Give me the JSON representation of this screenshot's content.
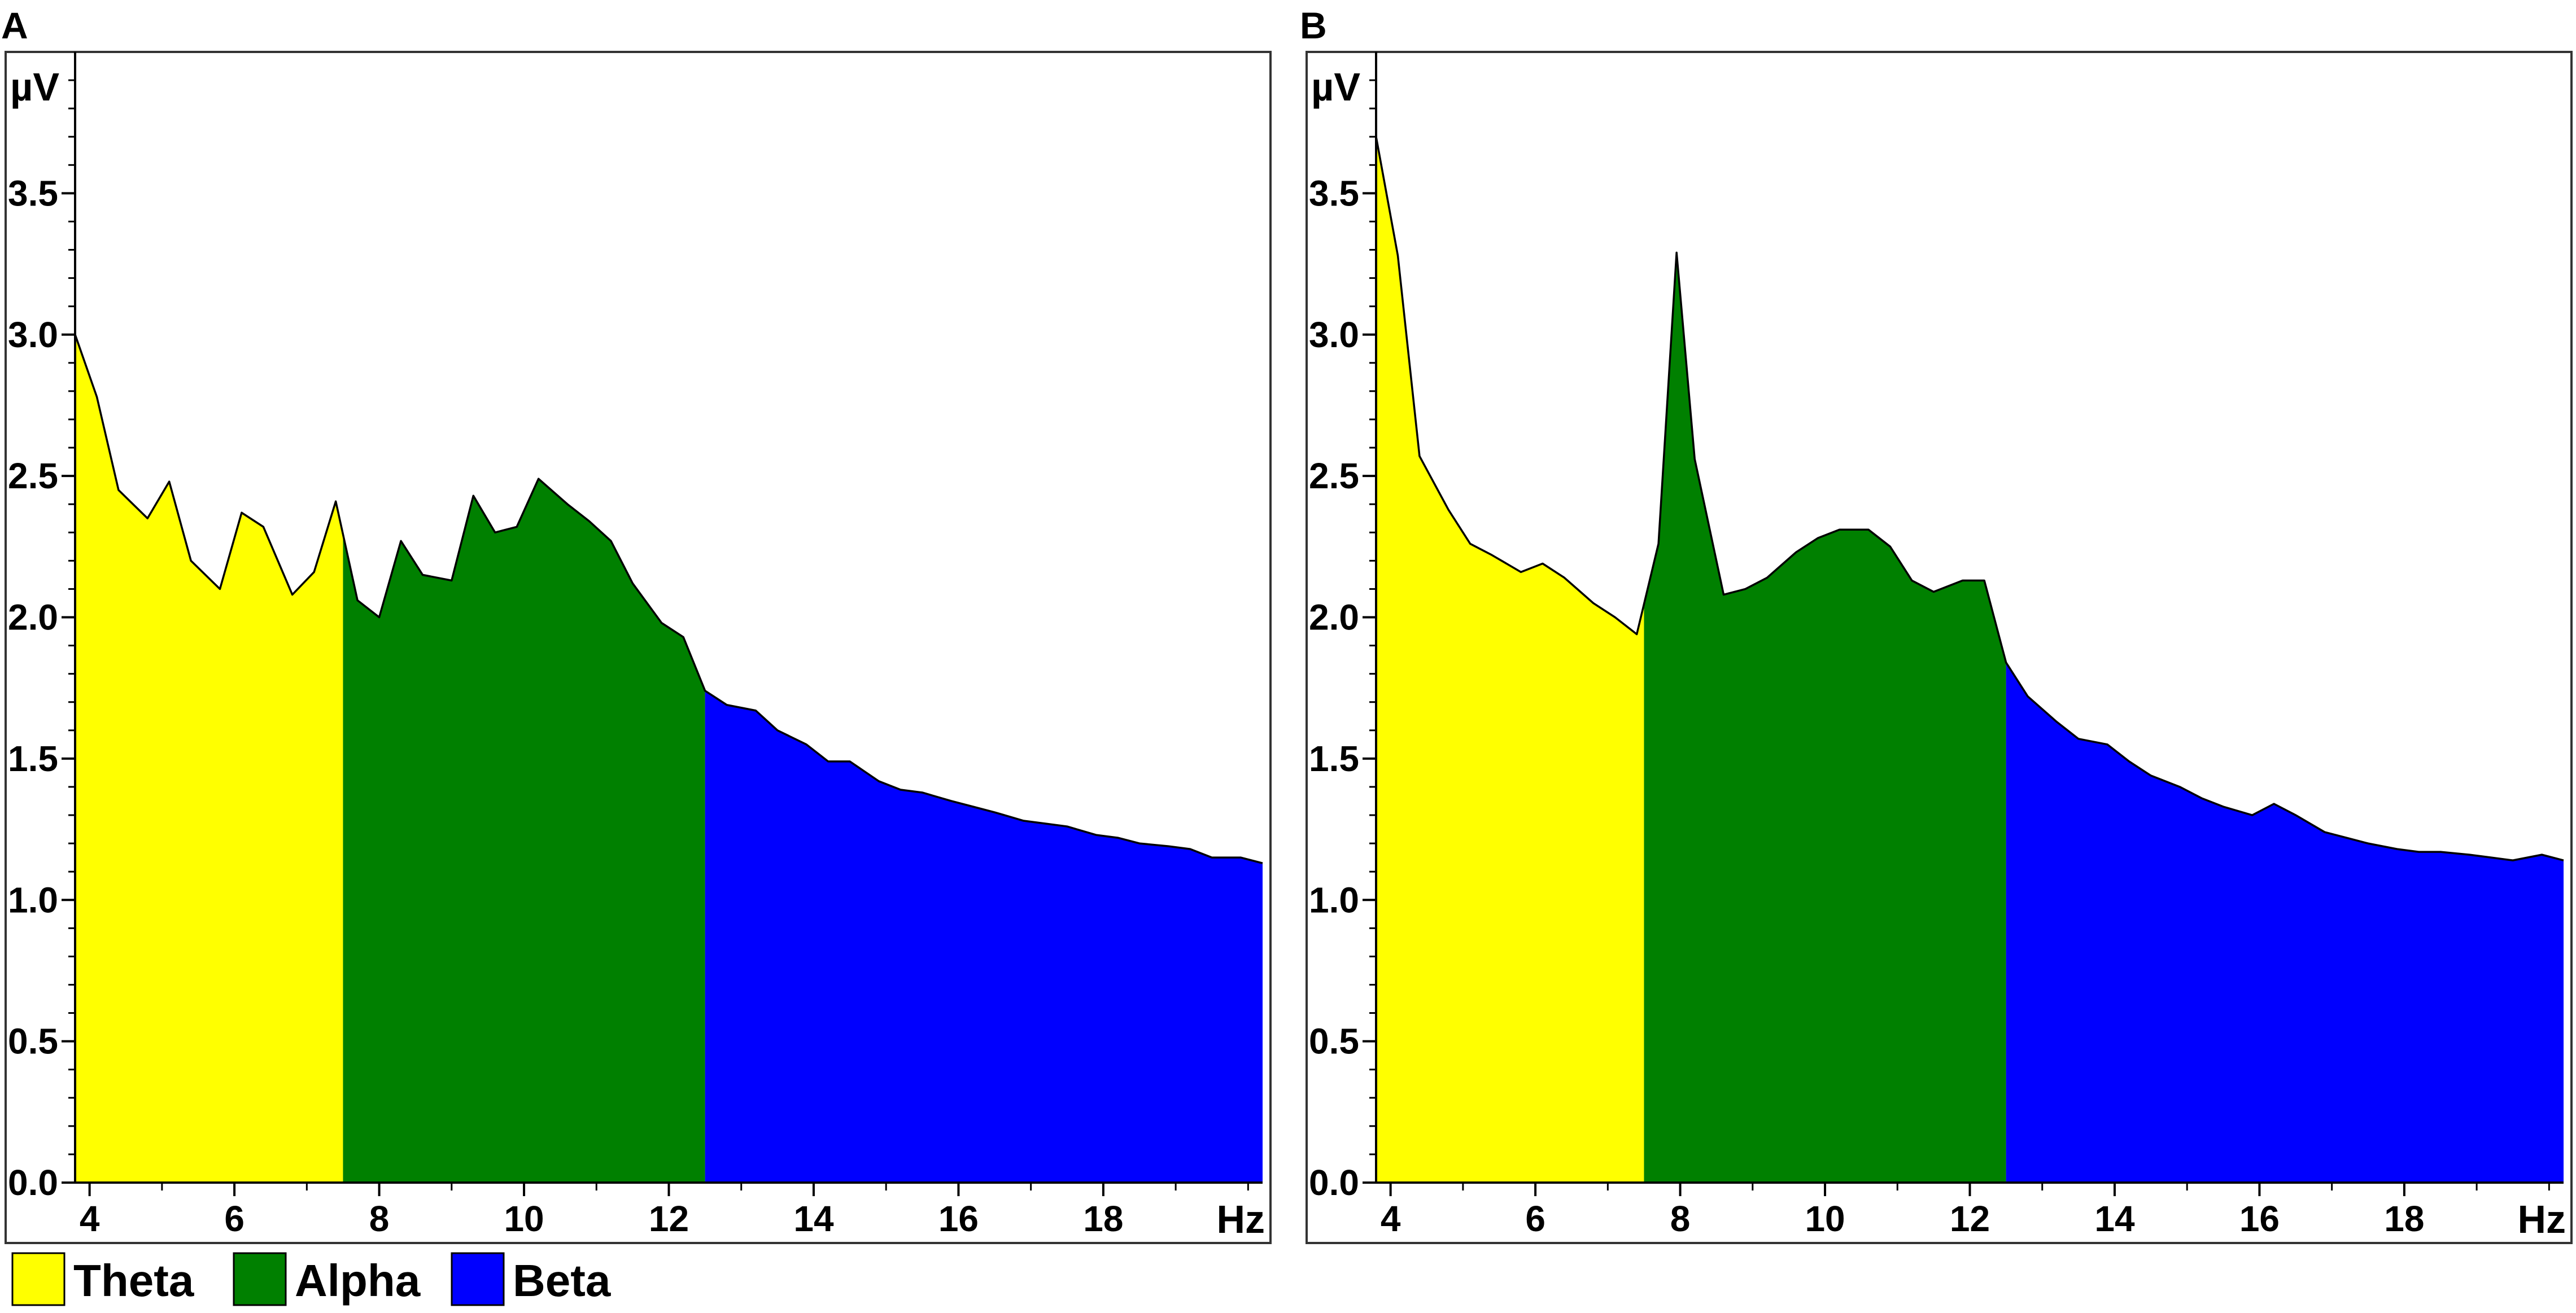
{
  "legend": [
    {
      "name": "Theta",
      "color": "#ffff00"
    },
    {
      "name": "Alpha",
      "color": "#008000"
    },
    {
      "name": "Beta",
      "color": "#0000ff"
    }
  ],
  "chart_data": [
    {
      "type": "area",
      "panel": "A",
      "xlabel": "Hz",
      "ylabel": "µV",
      "xlim": [
        3.8,
        20.2
      ],
      "ylim": [
        0,
        4.0
      ],
      "xticks": [
        4,
        6,
        8,
        10,
        12,
        14,
        16,
        18
      ],
      "yticks": [
        "0.0",
        "0.5",
        "1.0",
        "1.5",
        "2.0",
        "2.5",
        "3.0",
        "3.5"
      ],
      "grid": false,
      "bands": [
        {
          "name": "Theta",
          "from": 3.8,
          "to": 7.5
        },
        {
          "name": "Alpha",
          "from": 7.5,
          "to": 12.5
        },
        {
          "name": "Beta",
          "from": 12.5,
          "to": 20.2
        }
      ],
      "x": [
        3.8,
        4.1,
        4.4,
        4.8,
        5.1,
        5.4,
        5.8,
        6.1,
        6.4,
        6.8,
        7.1,
        7.4,
        7.7,
        8.0,
        8.3,
        8.6,
        9.0,
        9.3,
        9.6,
        9.9,
        10.2,
        10.6,
        10.9,
        11.2,
        11.5,
        11.9,
        12.2,
        12.5,
        12.8,
        13.2,
        13.5,
        13.9,
        14.2,
        14.5,
        14.9,
        15.2,
        15.5,
        15.9,
        16.2,
        16.5,
        16.9,
        17.2,
        17.5,
        17.9,
        18.2,
        18.5,
        18.9,
        19.2,
        19.5,
        19.9,
        20.2
      ],
      "values": [
        3.0,
        2.78,
        2.45,
        2.35,
        2.48,
        2.2,
        2.1,
        2.37,
        2.32,
        2.08,
        2.16,
        2.41,
        2.06,
        2.0,
        2.27,
        2.15,
        2.13,
        2.43,
        2.3,
        2.32,
        2.49,
        2.4,
        2.34,
        2.27,
        2.12,
        1.98,
        1.93,
        1.74,
        1.69,
        1.67,
        1.6,
        1.55,
        1.49,
        1.49,
        1.42,
        1.39,
        1.38,
        1.35,
        1.33,
        1.31,
        1.28,
        1.27,
        1.26,
        1.23,
        1.22,
        1.2,
        1.19,
        1.18,
        1.15,
        1.15,
        1.13
      ]
    },
    {
      "type": "area",
      "panel": "B",
      "xlabel": "Hz",
      "ylabel": "µV",
      "xlim": [
        3.8,
        20.2
      ],
      "ylim": [
        0,
        4.0
      ],
      "xticks": [
        4,
        6,
        8,
        10,
        12,
        14,
        16,
        18
      ],
      "yticks": [
        "0.0",
        "0.5",
        "1.0",
        "1.5",
        "2.0",
        "2.5",
        "3.0",
        "3.5"
      ],
      "grid": false,
      "bands": [
        {
          "name": "Theta",
          "from": 3.8,
          "to": 7.5
        },
        {
          "name": "Alpha",
          "from": 7.5,
          "to": 12.5
        },
        {
          "name": "Beta",
          "from": 12.5,
          "to": 20.2
        }
      ],
      "x": [
        3.8,
        4.1,
        4.4,
        4.8,
        5.1,
        5.4,
        5.8,
        6.1,
        6.4,
        6.8,
        7.1,
        7.4,
        7.7,
        7.95,
        8.2,
        8.6,
        8.9,
        9.2,
        9.6,
        9.9,
        10.2,
        10.6,
        10.9,
        11.2,
        11.5,
        11.9,
        12.2,
        12.5,
        12.8,
        13.2,
        13.5,
        13.9,
        14.2,
        14.5,
        14.9,
        15.2,
        15.5,
        15.9,
        16.2,
        16.5,
        16.9,
        17.2,
        17.5,
        17.9,
        18.2,
        18.5,
        18.9,
        19.2,
        19.5,
        19.9,
        20.2
      ],
      "values": [
        3.7,
        3.28,
        2.57,
        2.38,
        2.26,
        2.22,
        2.16,
        2.19,
        2.14,
        2.05,
        2.0,
        1.94,
        2.26,
        3.29,
        2.56,
        2.08,
        2.1,
        2.14,
        2.23,
        2.28,
        2.31,
        2.31,
        2.25,
        2.13,
        2.09,
        2.13,
        2.13,
        1.84,
        1.72,
        1.63,
        1.57,
        1.55,
        1.49,
        1.44,
        1.4,
        1.36,
        1.33,
        1.3,
        1.34,
        1.3,
        1.24,
        1.22,
        1.2,
        1.18,
        1.17,
        1.17,
        1.16,
        1.15,
        1.14,
        1.16,
        1.14
      ]
    }
  ]
}
